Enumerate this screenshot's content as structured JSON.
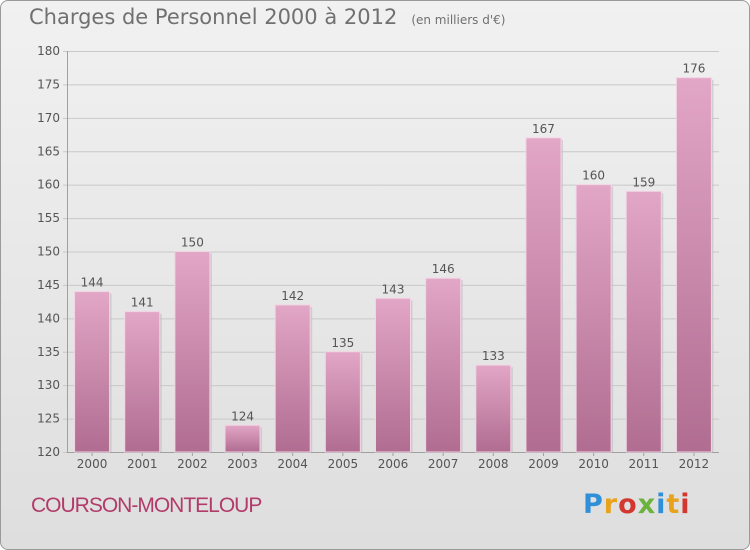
{
  "page": {
    "title": "Charges de Personnel 2000 à 2012",
    "subtitle": "(en milliers d'€)",
    "commune": "COURSON-MONTELOUP",
    "logo": {
      "text": "Proxiti",
      "letters": [
        {
          "char": "P",
          "color": "#2f8fd8"
        },
        {
          "char": "r",
          "color": "#e8a21b"
        },
        {
          "char": "o",
          "color": "#d2382f"
        },
        {
          "char": "x",
          "color": "#6cb33e"
        },
        {
          "char": "i",
          "color": "#2f8fd8"
        },
        {
          "char": "t",
          "color": "#e8a21b"
        },
        {
          "char": "i",
          "color": "#d2382f"
        }
      ]
    }
  },
  "chart_data": {
    "type": "bar",
    "title": "Charges de Personnel 2000 à 2012",
    "subtitle": "(en milliers d'€)",
    "xlabel": "",
    "ylabel": "",
    "categories": [
      "2000",
      "2001",
      "2002",
      "2003",
      "2004",
      "2005",
      "2006",
      "2007",
      "2008",
      "2009",
      "2010",
      "2011",
      "2012"
    ],
    "values": [
      144,
      141,
      150,
      124,
      142,
      135,
      143,
      146,
      133,
      167,
      160,
      159,
      176
    ],
    "ylim": [
      120,
      180
    ],
    "yticks": [
      120,
      125,
      130,
      135,
      140,
      145,
      150,
      155,
      160,
      165,
      170,
      175,
      180
    ],
    "grid": true,
    "bar_color": "#d58aae",
    "grid_color": "#c8c8c8",
    "text_color": "#555555"
  }
}
